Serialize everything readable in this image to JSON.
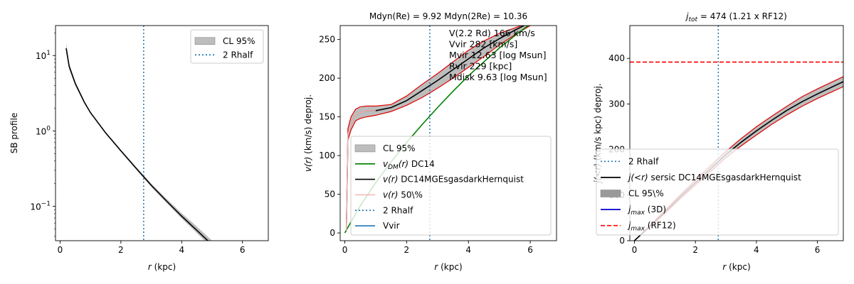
{
  "chart_data": [
    {
      "type": "line",
      "xlabel": "r (kpc)",
      "ylabel": "SB profile",
      "xlim": [
        -0.15,
        6.85
      ],
      "ylim": [
        0.035,
        25
      ],
      "yscale": "log",
      "xticks": [
        0,
        2,
        4,
        6
      ],
      "yticks": [
        {
          "value": 0.1,
          "base": "10",
          "exp": "−1"
        },
        {
          "value": 1,
          "base": "10",
          "exp": "0"
        },
        {
          "value": 10,
          "base": "10",
          "exp": "1"
        }
      ],
      "band": {
        "x": [
          0.2,
          0.3,
          0.5,
          0.8,
          1.0,
          1.5,
          2.0,
          2.5,
          3.0,
          3.5,
          4.0,
          4.5,
          5.0,
          5.5
        ],
        "lower": [
          11.0,
          6.6,
          4.0,
          2.3,
          1.7,
          0.92,
          0.53,
          0.31,
          0.18,
          0.111,
          0.069,
          0.044,
          0.028,
          0.018
        ],
        "upper": [
          14.5,
          7.8,
          4.5,
          2.5,
          1.8,
          0.97,
          0.565,
          0.335,
          0.2,
          0.126,
          0.081,
          0.054,
          0.035,
          0.024
        ]
      },
      "series": [
        {
          "label": "",
          "color": "#000000",
          "style": "solid",
          "x": [
            0.2,
            0.3,
            0.5,
            0.8,
            1.0,
            1.5,
            2.0,
            2.5,
            3.0,
            3.5,
            4.0,
            4.5,
            5.0,
            5.5
          ],
          "y": [
            12.5,
            7.2,
            4.25,
            2.4,
            1.75,
            0.94,
            0.545,
            0.32,
            0.19,
            0.118,
            0.074,
            0.048,
            0.031,
            0.02
          ]
        }
      ],
      "vline": {
        "x": 2.75,
        "color": "#1f77b4",
        "style": "dotted"
      },
      "legend": {
        "position": "top-right",
        "entries": [
          {
            "label": "CL 95%",
            "kind": "patch",
            "color": "#bbbbbb"
          },
          {
            "label": "2 Rhalf",
            "kind": "line",
            "color": "#1f77b4",
            "style": "dotted"
          }
        ]
      }
    },
    {
      "type": "line",
      "title": "Mdyn(Re) = 9.92  Mdyn(2Re) = 10.36",
      "xlabel": "r (kpc)",
      "ylabel": "v(r) (km/s) deproj.",
      "xlim": [
        -0.15,
        6.85
      ],
      "ylim": [
        -10,
        268
      ],
      "xticks": [
        0,
        2,
        4,
        6
      ],
      "yticks": [
        0,
        50,
        100,
        150,
        200,
        250
      ],
      "annotations": [
        "V(2.2 Rd) 166 km/s",
        "Vvir 282 [km/s]",
        "Mvir 12.63 [log Msun]",
        "Rvir 229 [kpc]",
        "Mdisk 9.63 [log Msun]"
      ],
      "band": {
        "x": [
          0.05,
          0.1,
          0.2,
          0.35,
          0.5,
          0.7,
          1.0,
          1.5,
          2.0,
          2.5,
          3.0,
          3.5,
          4.0,
          4.5,
          5.0,
          5.5,
          6.0,
          6.85
        ],
        "lower": [
          2,
          120,
          133,
          145,
          148,
          150,
          152,
          157,
          165,
          175,
          187,
          200,
          214,
          228,
          243,
          256,
          268,
          285
        ],
        "upper": [
          5,
          135,
          150,
          160,
          163,
          164,
          164,
          166,
          177,
          192,
          206,
          221,
          236,
          248,
          258,
          265,
          272,
          285
        ]
      },
      "series": [
        {
          "label": "v_DM(r) DC14",
          "color": "#008000",
          "style": "solid",
          "x": [
            0.0,
            0.25,
            0.5,
            1.0,
            1.5,
            2.0,
            2.5,
            3.0,
            3.5,
            4.0,
            4.5,
            5.0,
            5.5,
            6.0,
            6.85
          ],
          "y": [
            0,
            18,
            35,
            65,
            92,
            117,
            140,
            162,
            183,
            203,
            221,
            239,
            255,
            270,
            290
          ]
        },
        {
          "label": "v(r) DC14MGEsgasdarkHernquist",
          "color": "#000000",
          "style": "solid",
          "x": [
            0.05,
            0.1,
            0.2,
            0.35,
            0.5,
            0.7,
            1.0,
            1.5,
            2.0,
            2.5,
            3.0,
            3.5,
            4.0,
            4.5,
            5.0,
            5.5,
            6.0,
            6.85
          ],
          "y": [
            3,
            127,
            141,
            152,
            156,
            158,
            158,
            162,
            171,
            184,
            197,
            211,
            225,
            239,
            251,
            262,
            272,
            285
          ]
        },
        {
          "label": "v(r) 50\\%",
          "color": "#f4b8b8",
          "style": "solid",
          "x": [
            0.05,
            0.1,
            0.2,
            0.35,
            0.5,
            0.7,
            1.0
          ],
          "y": [
            3,
            127,
            141,
            152,
            156,
            158,
            158
          ]
        }
      ],
      "bounds_color": "#e00000",
      "vline": {
        "x": 2.75,
        "color": "#1f77b4",
        "style": "dotted"
      },
      "legend": {
        "position": "lower-right",
        "entries": [
          {
            "label": "CL 95%",
            "kind": "patch",
            "color": "#bbbbbb"
          },
          {
            "label": "v_DM(r) DC14",
            "kind": "line",
            "color": "#008000"
          },
          {
            "label": "v(r) DC14MGEsgasdarkHernquist",
            "kind": "line",
            "color": "#000000"
          },
          {
            "label": "v(r) 50\\%",
            "kind": "line",
            "color": "#f4b8b8"
          },
          {
            "label": "2 Rhalf",
            "kind": "line",
            "color": "#1f77b4",
            "style": "dotted"
          },
          {
            "label": "Vvir",
            "kind": "line",
            "color": "#1f77b4"
          }
        ]
      }
    },
    {
      "type": "line",
      "title": "j_tot = 474 (1.21 x RF12)",
      "xlabel": "r (kpc)",
      "ylabel": "j(<r) (km/s kpc) deproj.",
      "xlim": [
        -0.15,
        6.85
      ],
      "ylim": [
        0,
        472
      ],
      "xticks": [
        0,
        2,
        4,
        6
      ],
      "yticks": [
        0,
        100,
        200,
        300,
        400
      ],
      "band": {
        "x": [
          0.0,
          0.5,
          1.0,
          1.5,
          2.0,
          2.5,
          3.0,
          3.5,
          4.0,
          4.5,
          5.0,
          5.5,
          6.0,
          6.85
        ],
        "lower": [
          0,
          30,
          60,
          92,
          122,
          152,
          182,
          208,
          232,
          255,
          276,
          295,
          312,
          338
        ],
        "upper": [
          0,
          33,
          66,
          100,
          133,
          165,
          196,
          224,
          250,
          273,
          295,
          316,
          333,
          360
        ]
      },
      "series": [
        {
          "label": "j(<r) sersic DC14MGEsgasdarkHernquist",
          "color": "#000000",
          "style": "solid",
          "x": [
            0.0,
            0.5,
            1.0,
            1.5,
            2.0,
            2.5,
            3.0,
            3.5,
            4.0,
            4.5,
            5.0,
            5.5,
            6.0,
            6.85
          ],
          "y": [
            0,
            31,
            63,
            96,
            127,
            158,
            189,
            216,
            241,
            264,
            286,
            305,
            322,
            349
          ]
        },
        {
          "label": "j_max (RF12)",
          "color": "#ff0000",
          "style": "dashed",
          "x": [
            -0.15,
            6.85
          ],
          "y": [
            392,
            392
          ]
        }
      ],
      "bounds_color": "#e00000",
      "vline": {
        "x": 2.75,
        "color": "#1f77b4",
        "style": "dotted"
      },
      "legend": {
        "position": "lower-right",
        "entries": [
          {
            "label": "2 Rhalf",
            "kind": "line",
            "color": "#1f77b4",
            "style": "dotted"
          },
          {
            "label": "j(<r) sersic DC14MGEsgasdarkHernquist",
            "kind": "line",
            "color": "#000000"
          },
          {
            "label": "CL 95\\%",
            "kind": "patch",
            "color": "#888888"
          },
          {
            "label": "j_max (3D)",
            "kind": "line",
            "color": "#0000cc"
          },
          {
            "label": "j_max (RF12)",
            "kind": "line",
            "color": "#ff0000",
            "style": "dashed"
          }
        ]
      }
    }
  ]
}
